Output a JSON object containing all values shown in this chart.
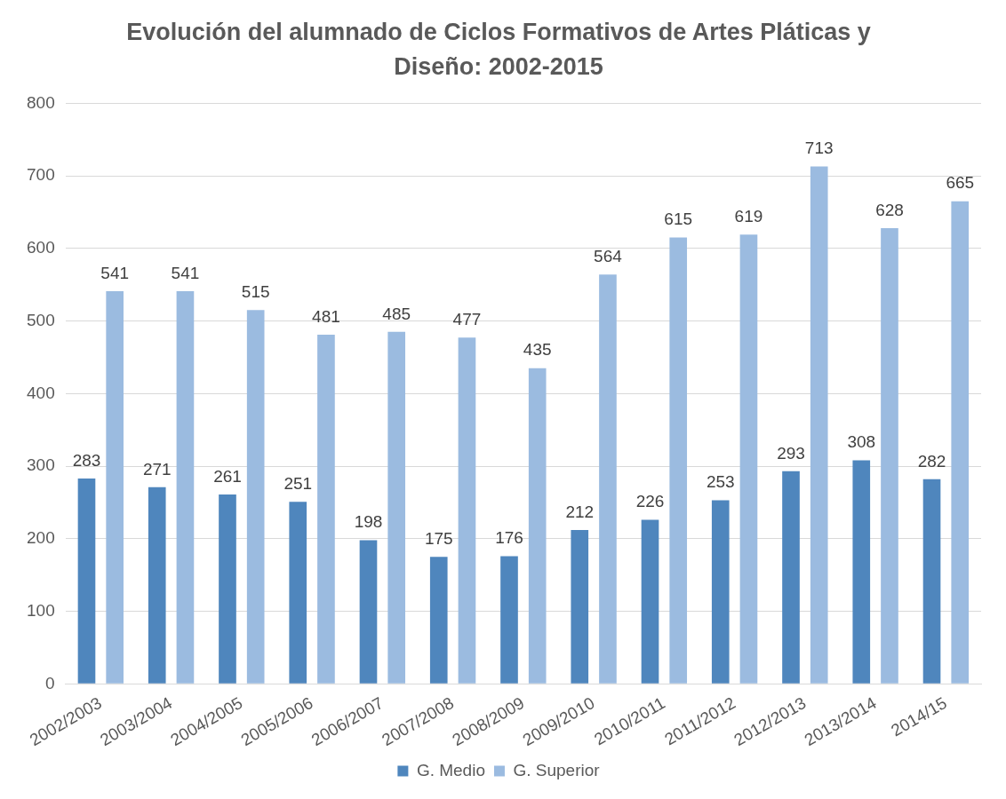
{
  "chart_data": {
    "type": "bar",
    "title": "Evolución del alumnado de Ciclos Formativos de Artes Pláticas y Diseño: 2002-2015",
    "categories": [
      "2002/2003",
      "2003/2004",
      "2004/2005",
      "2005/2006",
      "2006/2007",
      "2007/2008",
      "2008/2009",
      "2009/2010",
      "2010/2011",
      "2011/2012",
      "2012/2013",
      "2013/2014",
      "2014/15"
    ],
    "series": [
      {
        "name": "G. Medio",
        "color": "#4f86bd",
        "values": [
          283,
          271,
          261,
          251,
          198,
          175,
          176,
          212,
          226,
          253,
          293,
          308,
          282
        ]
      },
      {
        "name": "G. Superior",
        "color": "#9bbbe0",
        "values": [
          541,
          541,
          515,
          481,
          485,
          477,
          435,
          564,
          615,
          619,
          713,
          628,
          665
        ]
      }
    ],
    "ylim": [
      0,
      800
    ],
    "yticks": [
      0,
      100,
      200,
      300,
      400,
      500,
      600,
      700,
      800
    ],
    "grid": "y",
    "legend": "bottom",
    "data_labels": true
  }
}
